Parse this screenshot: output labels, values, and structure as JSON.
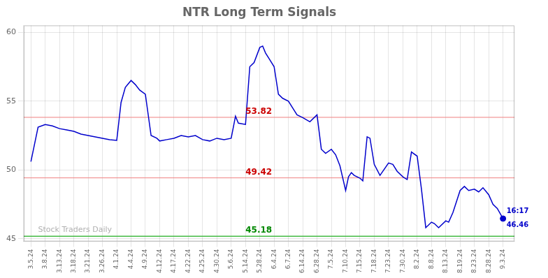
{
  "chart_data": {
    "type": "line",
    "title": "NTR Long Term Signals",
    "x": [
      0,
      0.5,
      1,
      1.5,
      2,
      2.5,
      3,
      3.5,
      4,
      4.5,
      5,
      5.5,
      6,
      6.3,
      6.6,
      7,
      7.3,
      7.6,
      8,
      8.4,
      8.8,
      9,
      9.5,
      10,
      10.5,
      11,
      11.5,
      12,
      12.5,
      13,
      13.5,
      14,
      14.3,
      14.5,
      15,
      15.3,
      15.6,
      16,
      16.2,
      16.4,
      16.7,
      17,
      17.3,
      17.6,
      18,
      18.3,
      18.6,
      19,
      19.5,
      20,
      20.3,
      20.6,
      21,
      21.3,
      21.6,
      22,
      22.2,
      22.4,
      22.6,
      23,
      23.2,
      23.5,
      23.7,
      24,
      24.4,
      25,
      25.3,
      25.6,
      26,
      26.3,
      26.6,
      27,
      27.3,
      27.6,
      28,
      28.2,
      28.5,
      29,
      29.2,
      29.5,
      30,
      30.3,
      30.6,
      31,
      31.3,
      31.6,
      32,
      32.3,
      32.6,
      33
    ],
    "values": [
      50.6,
      53.1,
      53.3,
      53.2,
      53.0,
      52.9,
      52.8,
      52.6,
      52.5,
      52.4,
      52.3,
      52.2,
      52.15,
      54.9,
      56.0,
      56.5,
      56.2,
      55.8,
      55.5,
      52.5,
      52.3,
      52.1,
      52.2,
      52.3,
      52.5,
      52.4,
      52.5,
      52.2,
      52.1,
      52.3,
      52.2,
      52.3,
      53.9,
      53.4,
      53.3,
      57.5,
      57.8,
      58.9,
      59.0,
      58.5,
      58.0,
      57.5,
      55.5,
      55.2,
      55.0,
      54.5,
      54.0,
      53.8,
      53.5,
      54.0,
      51.5,
      51.2,
      51.5,
      51.1,
      50.3,
      48.5,
      49.5,
      49.8,
      49.6,
      49.4,
      49.2,
      52.4,
      52.3,
      50.4,
      49.6,
      50.5,
      50.4,
      49.9,
      49.5,
      49.3,
      51.3,
      51.0,
      48.6,
      45.8,
      46.2,
      46.1,
      45.8,
      46.3,
      46.2,
      46.9,
      48.5,
      48.8,
      48.5,
      48.6,
      48.4,
      48.7,
      48.2,
      47.5,
      47.2,
      46.46
    ],
    "color": "#0000cc",
    "marked_points": [
      {
        "x": 33,
        "y": 46.46
      }
    ],
    "xlim": [
      -0.5,
      33.8
    ],
    "xticks": [
      {
        "value": 0,
        "label": "3.5.24"
      },
      {
        "value": 1,
        "label": "3.8.24"
      },
      {
        "value": 2,
        "label": "3.13.24"
      },
      {
        "value": 3,
        "label": "3.18.24"
      },
      {
        "value": 4,
        "label": "3.21.24"
      },
      {
        "value": 5,
        "label": "3.26.24"
      },
      {
        "value": 6,
        "label": "4.1.24"
      },
      {
        "value": 7,
        "label": "4.4.24"
      },
      {
        "value": 8,
        "label": "4.9.24"
      },
      {
        "value": 9,
        "label": "4.12.24"
      },
      {
        "value": 10,
        "label": "4.17.24"
      },
      {
        "value": 11,
        "label": "4.22.24"
      },
      {
        "value": 12,
        "label": "4.25.24"
      },
      {
        "value": 13,
        "label": "4.30.24"
      },
      {
        "value": 14,
        "label": "5.6.24"
      },
      {
        "value": 15,
        "label": "5.14.24"
      },
      {
        "value": 16,
        "label": "5.28.24"
      },
      {
        "value": 17,
        "label": "6.4.24"
      },
      {
        "value": 18,
        "label": "6.7.24"
      },
      {
        "value": 19,
        "label": "6.14.24"
      },
      {
        "value": 20,
        "label": "6.28.24"
      },
      {
        "value": 21,
        "label": "7.5.24"
      },
      {
        "value": 22,
        "label": "7.10.24"
      },
      {
        "value": 23,
        "label": "7.15.24"
      },
      {
        "value": 24,
        "label": "7.18.24"
      },
      {
        "value": 25,
        "label": "7.23.24"
      },
      {
        "value": 26,
        "label": "7.30.24"
      },
      {
        "value": 27,
        "label": "8.2.24"
      },
      {
        "value": 28,
        "label": "8.8.24"
      },
      {
        "value": 29,
        "label": "8.13.24"
      },
      {
        "value": 30,
        "label": "8.19.24"
      },
      {
        "value": 31,
        "label": "8.23.24"
      },
      {
        "value": 32,
        "label": "8.28.24"
      },
      {
        "value": 33,
        "label": "9.3.24"
      }
    ],
    "ylim": [
      44.8,
      60.5
    ],
    "yticks": [
      45,
      50,
      55,
      60
    ],
    "grid": true,
    "hlines": [
      {
        "value": 53.82,
        "color": "#f08080",
        "label": "53.82",
        "label_color": "#cc0000",
        "label_x": 15
      },
      {
        "value": 49.42,
        "color": "#f08080",
        "label": "49.42",
        "label_color": "#cc0000",
        "label_x": 15
      },
      {
        "value": 45.18,
        "color": "#44bb44",
        "label": "45.18",
        "label_color": "#008800",
        "label_x": 15
      }
    ],
    "annotations": [
      {
        "text": "16:17",
        "x": 33,
        "y": 46.46,
        "position": "above",
        "color": "#0000cc"
      },
      {
        "text": "46.46",
        "x": 33,
        "y": 46.46,
        "position": "below",
        "color": "#0000cc"
      },
      {
        "text": "Stock Traders Daily",
        "x": 0.5,
        "y": 45.35,
        "position": "right",
        "color": "#b0b0b0"
      }
    ]
  }
}
